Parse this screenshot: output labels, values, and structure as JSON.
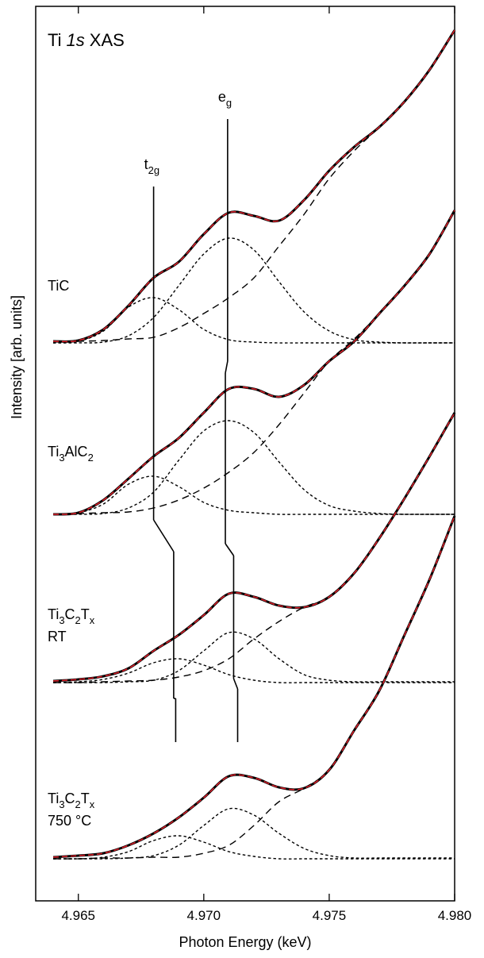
{
  "chart_data": {
    "type": "line",
    "title": [
      {
        "text": "Ti"
      },
      {
        "italic": "1s"
      },
      {
        "text": "XAS"
      }
    ],
    "xlabel": "Photon Energy (keV)",
    "ylabel": "Intensity [arb. units]",
    "xlim": [
      4.9633,
      4.98
    ],
    "ylim": [
      0,
      1127
    ],
    "xticks": [
      4.965,
      {
        "value": 4.97,
        "label": "4.970"
      },
      4.975,
      {
        "value": 4.98,
        "label": "4.980"
      }
    ],
    "colors": {
      "data": "#000000",
      "fit": "#e0202a",
      "component": "#000000"
    },
    "x": [
      4.964,
      4.965,
      4.966,
      4.967,
      4.968,
      4.969,
      4.97,
      4.971,
      4.972,
      4.973,
      4.974,
      4.975,
      4.976,
      4.977,
      4.978,
      4.979,
      4.98
    ],
    "peak_labels": {
      "t2g": [
        {
          "text": "t"
        },
        {
          "sub": "2g"
        }
      ],
      "eg": [
        {
          "text": "e"
        },
        {
          "sub": "g"
        }
      ]
    },
    "samples": [
      {
        "label": [
          {
            "text": "TiC"
          }
        ],
        "t2g_position": 4.968,
        "eg_position": 4.97095,
        "series": {
          "data": [
            705,
            706,
            720,
            750,
            785,
            805,
            840,
            867,
            863,
            857,
            883,
            920,
            950,
            975,
            1007,
            1047,
            1097
          ],
          "fit": [
            705,
            706,
            720,
            750,
            785,
            805,
            840,
            867,
            863,
            857,
            883,
            920,
            950,
            975,
            1007,
            1047,
            1097
          ],
          "t2g": [
            703,
            705,
            718,
            748,
            760,
            745,
            720,
            707,
            704,
            703,
            703,
            703,
            703,
            703,
            703,
            703,
            703
          ],
          "eg": [
            703,
            703,
            704,
            712,
            735,
            775,
            815,
            835,
            820,
            780,
            742,
            718,
            707,
            704,
            703,
            703,
            703
          ],
          "background": [
            705,
            705,
            706,
            708,
            710,
            722,
            740,
            760,
            785,
            825,
            865,
            910,
            945,
            975,
            1007,
            1047,
            1097
          ]
        }
      },
      {
        "label": [
          {
            "text": "Ti"
          },
          {
            "sub": "3"
          },
          {
            "text": "AlC"
          },
          {
            "sub": "2"
          }
        ],
        "t2g_position": 4.968,
        "eg_position": 4.97086,
        "series": {
          "data": [
            487,
            489,
            505,
            532,
            560,
            583,
            615,
            645,
            645,
            635,
            650,
            680,
            705,
            740,
            775,
            815,
            870
          ],
          "fit": [
            487,
            489,
            505,
            532,
            560,
            583,
            615,
            645,
            645,
            635,
            650,
            680,
            705,
            740,
            775,
            815,
            870
          ],
          "t2g": [
            487,
            489,
            500,
            525,
            535,
            522,
            502,
            492,
            489,
            487,
            487,
            487,
            487,
            487,
            487,
            487,
            487
          ],
          "eg": [
            487,
            487,
            488,
            495,
            515,
            555,
            592,
            605,
            590,
            553,
            518,
            498,
            491,
            488,
            487,
            487,
            487
          ],
          "background": [
            487,
            488,
            489,
            490,
            495,
            505,
            520,
            540,
            565,
            600,
            640,
            680,
            708,
            740,
            775,
            815,
            870
          ]
        }
      },
      {
        "label": [
          {
            "text": "Ti"
          },
          {
            "sub": "3"
          },
          {
            "text": "C"
          },
          {
            "sub": "2"
          },
          {
            "text": "T"
          },
          {
            "sub": "x"
          }
        ],
        "condition": "RT",
        "t2g_position": 4.9688,
        "eg_position": 4.97119,
        "series": {
          "data": [
            277,
            279,
            283,
            293,
            315,
            335,
            360,
            387,
            383,
            372,
            370,
            383,
            413,
            457,
            507,
            560,
            615
          ],
          "fit": [
            277,
            279,
            283,
            293,
            315,
            335,
            360,
            387,
            383,
            372,
            370,
            383,
            413,
            457,
            507,
            560,
            615
          ],
          "t2g": [
            275,
            276,
            279,
            287,
            300,
            305,
            297,
            285,
            278,
            275,
            275,
            275,
            275,
            275,
            275,
            275,
            275
          ],
          "eg": [
            275,
            275,
            275,
            276,
            278,
            290,
            315,
            338,
            330,
            305,
            285,
            278,
            276,
            276,
            276,
            276,
            276
          ],
          "background": [
            275,
            275,
            276,
            277,
            278,
            282,
            290,
            305,
            330,
            352,
            370,
            383,
            413,
            457,
            507,
            560,
            615
          ]
        }
      },
      {
        "label": [
          {
            "text": "Ti"
          },
          {
            "sub": "3"
          },
          {
            "text": "C"
          },
          {
            "sub": "2"
          },
          {
            "text": "T"
          },
          {
            "sub": "x"
          }
        ],
        "condition": "750 °C",
        "t2g_position": 4.96888,
        "eg_position": 4.97135,
        "series": {
          "data": [
            55,
            57,
            60,
            70,
            85,
            105,
            130,
            157,
            155,
            143,
            142,
            165,
            215,
            265,
            335,
            405,
            485
          ],
          "fit": [
            55,
            57,
            60,
            70,
            85,
            105,
            130,
            157,
            155,
            143,
            142,
            165,
            215,
            265,
            335,
            405,
            485
          ],
          "t2g": [
            53,
            53,
            55,
            62,
            76,
            82,
            74,
            62,
            56,
            53,
            53,
            53,
            53,
            53,
            53,
            53,
            53
          ],
          "eg": [
            53,
            53,
            53,
            54,
            57,
            70,
            95,
            116,
            108,
            85,
            66,
            57,
            54,
            54,
            54,
            54,
            54
          ],
          "background": [
            53,
            53,
            54,
            54,
            55,
            55,
            60,
            70,
            95,
            125,
            142,
            165,
            215,
            265,
            335,
            405,
            485
          ]
        }
      }
    ]
  }
}
